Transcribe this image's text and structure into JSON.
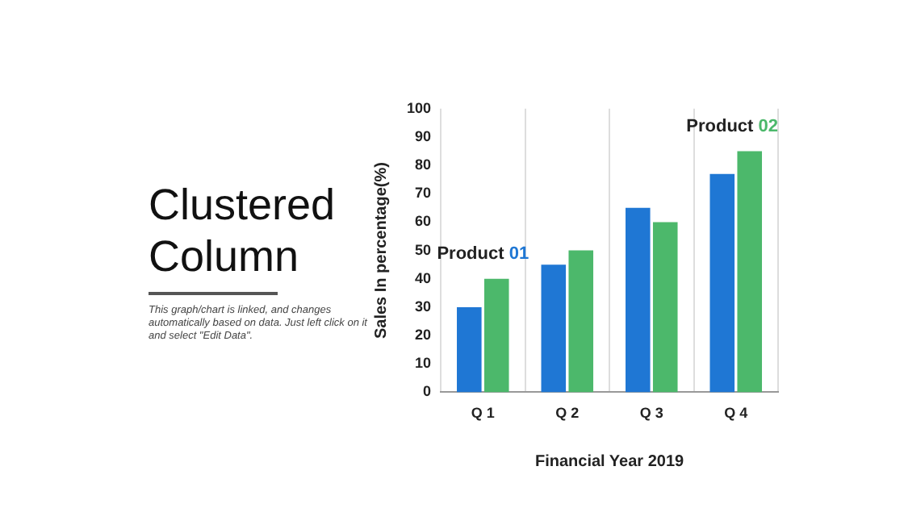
{
  "chart_data": {
    "type": "bar",
    "title": "Clustered Column",
    "annotations": [
      "This graph/chart is linked, and changes automatically based on data.  Just left click on it and select \"Edit Data\"."
    ],
    "xlabel": "Financial Year 2019",
    "ylabel": "Sales In percentage(%)",
    "categories": [
      "Q 1",
      "Q 2",
      "Q 3",
      "Q 4"
    ],
    "series": [
      {
        "name": "Product 01",
        "color": "#1f77d4",
        "values": [
          30,
          45,
          65,
          77
        ]
      },
      {
        "name": "Product 02",
        "color": "#4cb86b",
        "values": [
          40,
          50,
          60,
          85
        ]
      }
    ],
    "ylim": [
      0,
      100
    ],
    "yticks": [
      0,
      10,
      20,
      30,
      40,
      50,
      60,
      70,
      80,
      90,
      100
    ],
    "grid": "x",
    "legend": false
  }
}
